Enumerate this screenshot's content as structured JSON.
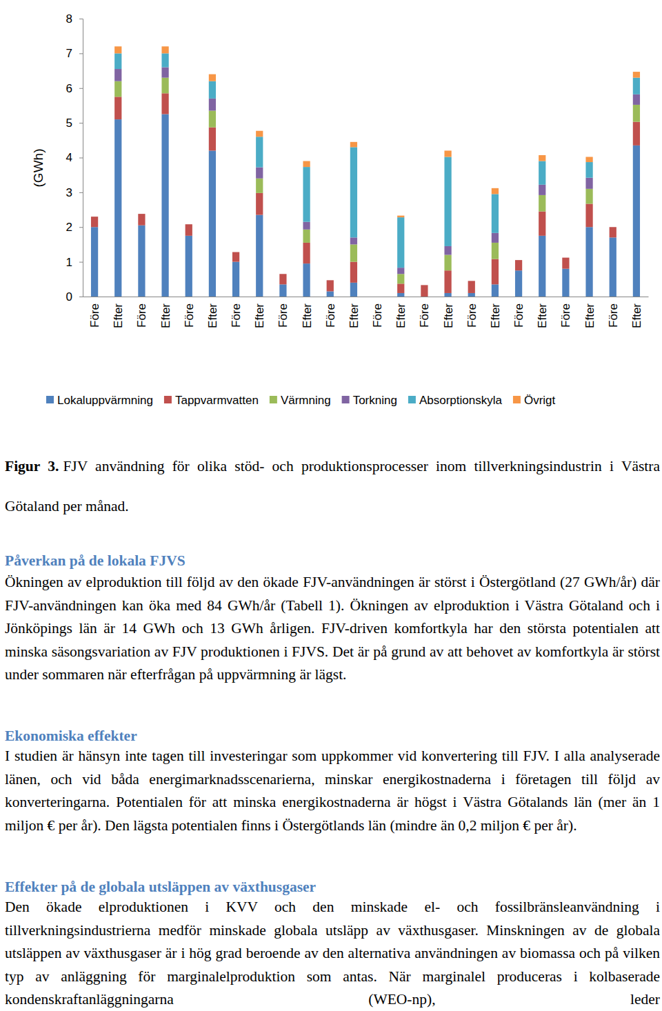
{
  "chart_data": {
    "type": "bar",
    "stacked": true,
    "y_label": "(GWh)",
    "categories": [
      "Före",
      "Efter",
      "Före",
      "Efter",
      "Före",
      "Efter",
      "Före",
      "Efter",
      "Före",
      "Efter",
      "Före",
      "Efter",
      "Före",
      "Efter",
      "Före",
      "Efter",
      "Före",
      "Efter",
      "Före",
      "Efter",
      "Före",
      "Efter",
      "Före",
      "Efter"
    ],
    "series": [
      {
        "name": "Lokaluppvärmning",
        "color": "#4f81bd",
        "values": [
          2.0,
          5.1,
          2.05,
          5.25,
          1.75,
          4.2,
          1.0,
          2.35,
          0.35,
          0.95,
          0.15,
          0.4,
          0,
          0.1,
          0,
          0.1,
          0.1,
          0.35,
          0.75,
          1.75,
          0.8,
          2.0,
          1.7,
          4.35
        ]
      },
      {
        "name": "Tappvarmvatten",
        "color": "#c0504d",
        "values": [
          0.3,
          0.65,
          0.33,
          0.6,
          0.33,
          0.67,
          0.28,
          0.63,
          0.3,
          0.6,
          0.32,
          0.6,
          0,
          0.27,
          0.33,
          0.65,
          0.35,
          0.73,
          0.3,
          0.7,
          0.32,
          0.67,
          0.3,
          0.68
        ]
      },
      {
        "name": "Värmning",
        "color": "#9bbb59",
        "values": [
          0,
          0.45,
          0,
          0.45,
          0,
          0.48,
          0,
          0.42,
          0,
          0.38,
          0,
          0.5,
          0,
          0.28,
          0,
          0.45,
          0,
          0.47,
          0,
          0.47,
          0,
          0.43,
          0,
          0.49
        ]
      },
      {
        "name": "Torkning",
        "color": "#8064a2",
        "values": [
          0,
          0.35,
          0,
          0.3,
          0,
          0.35,
          0,
          0.32,
          0,
          0.22,
          0,
          0.2,
          0,
          0.18,
          0,
          0.25,
          0,
          0.28,
          0,
          0.3,
          0,
          0.32,
          0,
          0.3
        ]
      },
      {
        "name": "Absorptionskyla",
        "color": "#4bacc6",
        "values": [
          0,
          0.45,
          0,
          0.4,
          0,
          0.5,
          0,
          0.88,
          0,
          1.58,
          0,
          2.6,
          0,
          1.45,
          0,
          2.57,
          0,
          1.12,
          0,
          0.68,
          0,
          0.45,
          0,
          0.48
        ]
      },
      {
        "name": "Övrigt",
        "color": "#f79646",
        "values": [
          0,
          0.2,
          0,
          0.2,
          0,
          0.2,
          0,
          0.17,
          0,
          0.17,
          0,
          0.15,
          0,
          0.05,
          0,
          0.18,
          0,
          0.17,
          0,
          0.17,
          0,
          0.15,
          0,
          0.17
        ]
      }
    ],
    "ylim": [
      0,
      8
    ],
    "yticks": [
      0,
      1,
      2,
      3,
      4,
      5,
      6,
      7,
      8
    ],
    "grid": false,
    "legend": "bottom"
  },
  "document": {
    "caption": {
      "label": "Figur 3.",
      "text": "FJV användning för olika stöd- och produktionsprocesser inom tillverkningsindustrin i Västra Götaland per månad."
    },
    "sections": [
      {
        "heading": "Påverkan på de lokala FJVS",
        "text": "Ökningen av elproduktion till följd av den ökade FJV-användningen är störst i Östergötland (27 GWh/år) där FJV-användningen kan öka med 84 GWh/år (Tabell 1). Ökningen av elproduktion i Västra Götaland och i Jönköpings län är 14 GWh och 13 GWh årligen. FJV-driven komfortkyla har den största potentialen att minska säsongsvariation av FJV produktionen i FJVS. Det är på grund av att behovet av komfortkyla är störst under sommaren när efterfrågan på uppvärmning är lägst."
      },
      {
        "heading": "Ekonomiska effekter",
        "text": "I studien är hänsyn inte tagen till investeringar som uppkommer vid konvertering till FJV. I alla analyserade länen, och vid båda energimarknadsscenarierna, minskar energikostnaderna i företagen till följd av konverteringarna. Potentialen för att minska energikostnaderna är högst i Västra Götalands län (mer än 1 miljon € per år). Den lägsta potentialen finns i Östergötlands län (mindre än 0,2 miljon € per år)."
      },
      {
        "heading": "Effekter på de globala utsläppen av växthusgaser",
        "text": "Den ökade elproduktionen i KVV och den minskade el- och fossilbränsleanvändning i tillverkningsindustrierna medför minskade globala utsläpp av växthusgaser. Minskningen av de globala utsläppen av växthusgaser är i hög grad beroende av den alternativa användningen av biomassa och på vilken typ av anläggning för marginalelproduktion som antas. När marginalel produceras i kolbaserade kondenskraftanläggningarna (WEO-np), leder"
      }
    ]
  }
}
